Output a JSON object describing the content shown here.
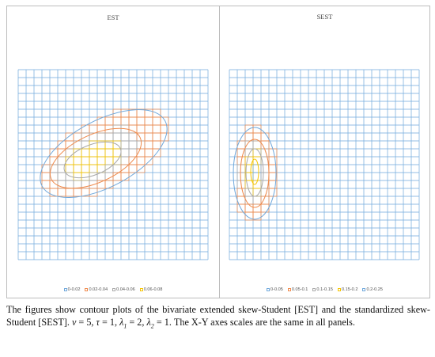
{
  "chart_data": [
    {
      "type": "contour",
      "title": "EST",
      "grid": true,
      "legend_position": "bottom",
      "legend": [
        {
          "label": "0-0.02",
          "color": "#6fa8dc"
        },
        {
          "label": "0.02-0.04",
          "color": "#f08a4b"
        },
        {
          "label": "0.04-0.06",
          "color": "#a9a9a9"
        },
        {
          "label": "0.06-0.08",
          "color": "#f5c400"
        }
      ],
      "contour_levels": [
        0.02,
        0.04,
        0.06
      ]
    },
    {
      "type": "contour",
      "title": "SEST",
      "grid": true,
      "legend_position": "bottom",
      "legend": [
        {
          "label": "0-0.05",
          "color": "#6fa8dc"
        },
        {
          "label": "0.05-0.1",
          "color": "#f08a4b"
        },
        {
          "label": "0.1-0.15",
          "color": "#a9a9a9"
        },
        {
          "label": "0.15-0.2",
          "color": "#f5c400"
        },
        {
          "label": "0.2-0.25",
          "color": "#6fa8dc"
        }
      ],
      "contour_levels": [
        0.05,
        0.1,
        0.15,
        0.2
      ]
    }
  ],
  "caption": {
    "part1": "The figures show contour plots of the bivariate extended skew-Student [EST] and the standardized skew-Student [SEST]. ",
    "nu": "ν",
    "nu_val": " = 5, ",
    "tau": "τ",
    "tau_val": " = 1, ",
    "lambda": "λ",
    "l1_sub": "1",
    "l1_val": " = 2, ",
    "l2_sub": "2",
    "l2_val": " = 1. The X-Y axes scales are the same in all panels."
  }
}
